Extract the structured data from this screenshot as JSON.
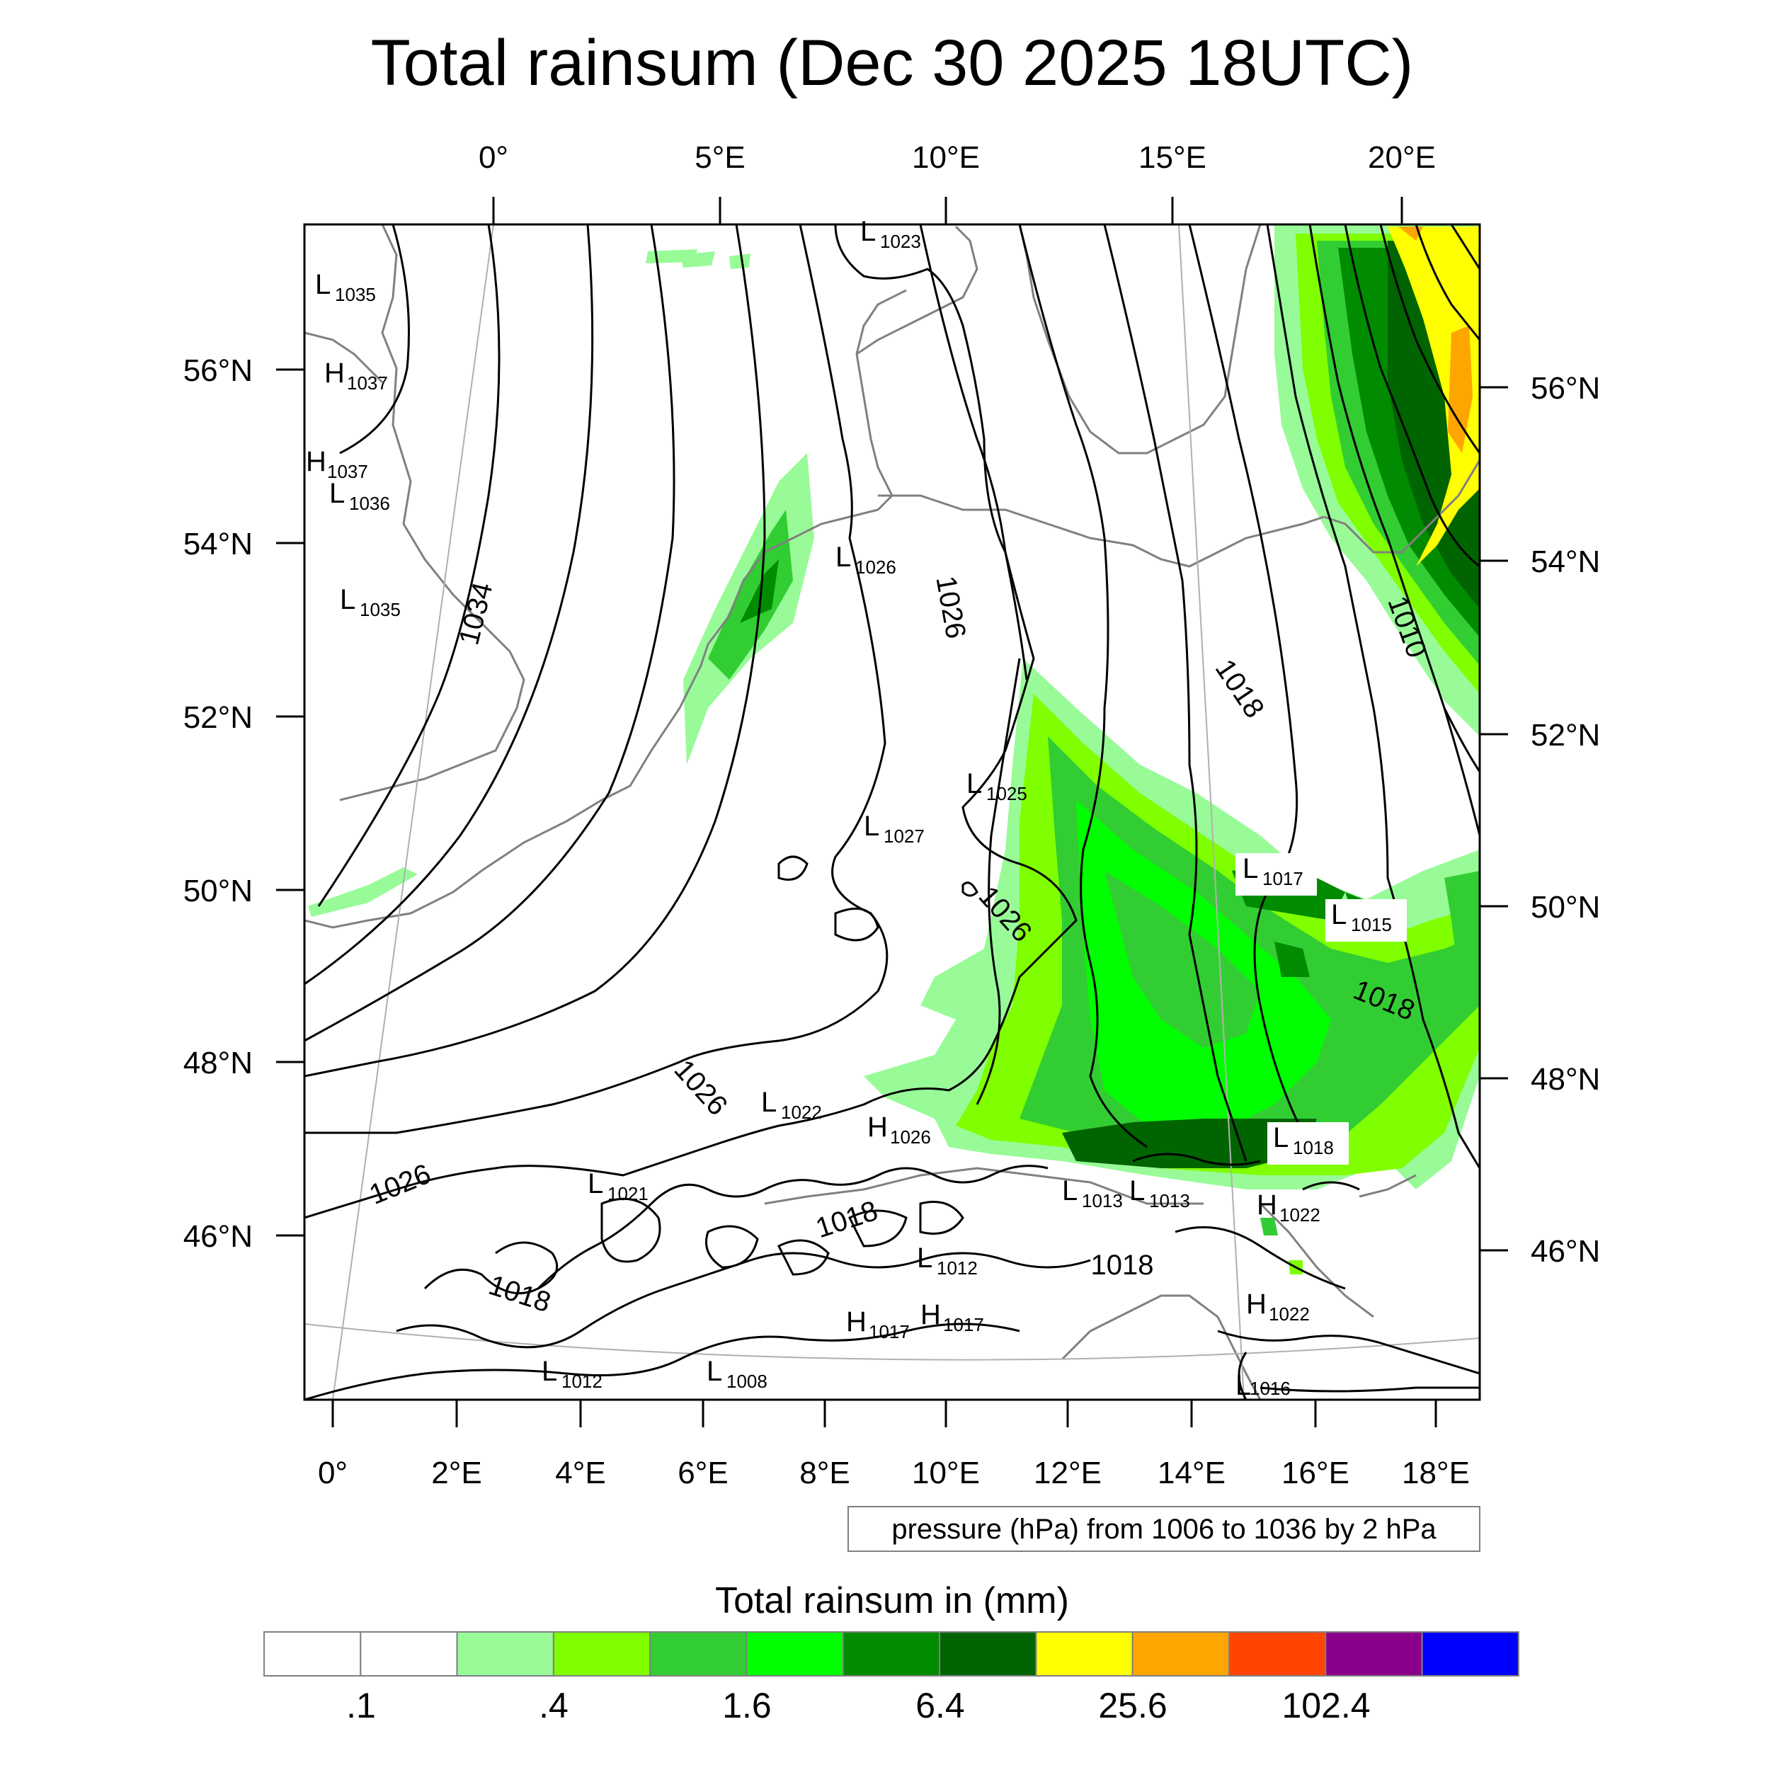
{
  "title": "Total rainsum (Dec 30 2025 18UTC)",
  "top_lon_labels": [
    "0°",
    "5°E",
    "10°E",
    "15°E",
    "20°E"
  ],
  "bottom_lon_labels": [
    "0°",
    "2°E",
    "4°E",
    "6°E",
    "8°E",
    "10°E",
    "12°E",
    "14°E",
    "16°E",
    "18°E"
  ],
  "left_lat_labels": [
    "56°N",
    "54°N",
    "52°N",
    "50°N",
    "48°N",
    "46°N"
  ],
  "right_lat_labels": [
    "56°N",
    "54°N",
    "52°N",
    "50°N",
    "48°N",
    "46°N"
  ],
  "contour_info": "pressure (hPa) from 1006 to 1036 by 2 hPa",
  "colorbar": {
    "title": "Total rainsum in (mm)",
    "colors": [
      "#ffffff",
      "#ffffff",
      "#98fb98",
      "#7fff00",
      "#32cd32",
      "#00ff00",
      "#008b00",
      "#006400",
      "#ffff00",
      "#ffa500",
      "#ff4500",
      "#8b008b",
      "#0000ff"
    ],
    "labels": [
      ".1",
      ".4",
      "1.6",
      "6.4",
      "25.6",
      "102.4"
    ]
  },
  "contour_labels": [
    "1034",
    "1026",
    "1026",
    "1026",
    "1026",
    "1018",
    "1018",
    "1018",
    "1018",
    "1018",
    "1010"
  ],
  "pressure_centers": [
    {
      "t": "L",
      "v": "1035"
    },
    {
      "t": "H",
      "v": "1037"
    },
    {
      "t": "H",
      "v": "1037"
    },
    {
      "t": "L",
      "v": "1036"
    },
    {
      "t": "L",
      "v": "1035"
    },
    {
      "t": "L",
      "v": "1023"
    },
    {
      "t": "L",
      "v": "1026"
    },
    {
      "t": "L",
      "v": "1025"
    },
    {
      "t": "L",
      "v": "1027"
    },
    {
      "t": "L",
      "v": "1017"
    },
    {
      "t": "L",
      "v": "1015"
    },
    {
      "t": "L",
      "v": "1022"
    },
    {
      "t": "H",
      "v": "1026"
    },
    {
      "t": "L",
      "v": "1018"
    },
    {
      "t": "L",
      "v": "1021"
    },
    {
      "t": "L",
      "v": "1013"
    },
    {
      "t": "L",
      "v": "1013"
    },
    {
      "t": "H",
      "v": "1022"
    },
    {
      "t": "L",
      "v": "1012"
    },
    {
      "t": "H",
      "v": "1022"
    },
    {
      "t": "H",
      "v": "1017"
    },
    {
      "t": "H",
      "v": "1017"
    },
    {
      "t": "L",
      "v": "1012"
    },
    {
      "t": "L",
      "v": "1008"
    },
    {
      "t": "L",
      "v": "1016"
    }
  ]
}
